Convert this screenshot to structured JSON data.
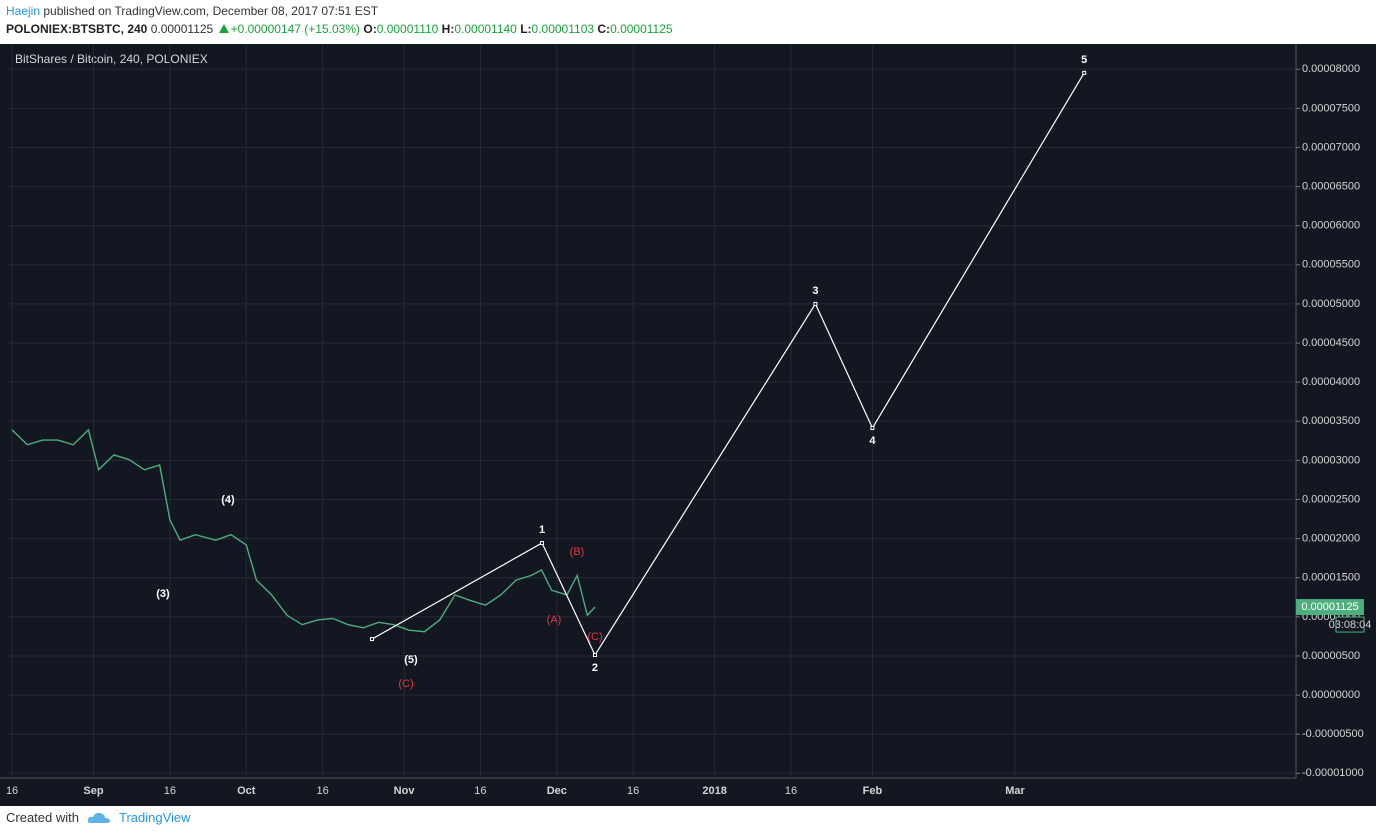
{
  "header": {
    "author": "Haejin",
    "published": "published on TradingView.com, December 08, 2017 07:51 EST",
    "symbol": "POLONIEX:BTSBTC, 240",
    "close": "0.00001125",
    "change": "+0.00000147 (+15.03%)",
    "o_label": "O:",
    "o": "0.00001110",
    "h_label": "H:",
    "h": "0.00001140",
    "l_label": "L:",
    "l": "0.00001103",
    "c_label": "C:",
    "c": "0.00001125"
  },
  "footer": {
    "created": "Created with",
    "brand": "TradingView"
  },
  "chart_data": {
    "type": "line",
    "title": "BitShares / Bitcoin, 240, POLONIEX",
    "countdown": "03:08:04",
    "xlim": [
      -0.8,
      252.2
    ],
    "ylim": [
      -1.06e-05,
      8.31e-05
    ],
    "grid": true,
    "xticks": [
      {
        "value": 0,
        "label": "16"
      },
      {
        "value": 16,
        "label": "Sep"
      },
      {
        "value": 31,
        "label": "16"
      },
      {
        "value": 46,
        "label": "Oct"
      },
      {
        "value": 61,
        "label": "16"
      },
      {
        "value": 77,
        "label": "Nov"
      },
      {
        "value": 92,
        "label": "16"
      },
      {
        "value": 107,
        "label": "Dec"
      },
      {
        "value": 122,
        "label": "16"
      },
      {
        "value": 138,
        "label": "2018"
      },
      {
        "value": 153,
        "label": "16"
      },
      {
        "value": 169,
        "label": "Feb"
      },
      {
        "value": 197,
        "label": "Mar"
      }
    ],
    "yticks": [
      {
        "value": 8e-05,
        "label": "0.00008000"
      },
      {
        "value": 7.5e-05,
        "label": "0.00007500"
      },
      {
        "value": 7e-05,
        "label": "0.00007000"
      },
      {
        "value": 6.5e-05,
        "label": "0.00006500"
      },
      {
        "value": 6e-05,
        "label": "0.00006000"
      },
      {
        "value": 5.5e-05,
        "label": "0.00005500"
      },
      {
        "value": 5e-05,
        "label": "0.00005000"
      },
      {
        "value": 4.5e-05,
        "label": "0.00004500"
      },
      {
        "value": 4e-05,
        "label": "0.00004000"
      },
      {
        "value": 3.5e-05,
        "label": "0.00003500"
      },
      {
        "value": 3e-05,
        "label": "0.00003000"
      },
      {
        "value": 2.5e-05,
        "label": "0.00002500"
      },
      {
        "value": 2e-05,
        "label": "0.00002000"
      },
      {
        "value": 1.5e-05,
        "label": "0.00001500"
      },
      {
        "value": 1e-05,
        "label": "0.00001000"
      },
      {
        "value": 5e-06,
        "label": "0.00000500"
      },
      {
        "value": 0,
        "label": "0.00000000"
      },
      {
        "value": -5e-06,
        "label": "-0.00000500"
      },
      {
        "value": -1e-05,
        "label": "-0.00001000"
      }
    ],
    "series": [
      {
        "color": "#4caf7d",
        "x": [
          0,
          3,
          6,
          9,
          12,
          15,
          17,
          20,
          23,
          26,
          29,
          31,
          33,
          36,
          40,
          43,
          46,
          48,
          51,
          54,
          57,
          60,
          63,
          66,
          69,
          72,
          75,
          78,
          81,
          84,
          87,
          90,
          93,
          96,
          99,
          102,
          104,
          106,
          109,
          111,
          113,
          114.5
        ],
        "values": [
          3.39e-05,
          3.2e-05,
          3.26e-05,
          3.26e-05,
          3.2e-05,
          3.39e-05,
          2.88e-05,
          3.07e-05,
          3.01e-05,
          2.88e-05,
          2.94e-05,
          2.24e-05,
          1.98e-05,
          2.05e-05,
          1.98e-05,
          2.05e-05,
          1.92e-05,
          1.47e-05,
          1.28e-05,
          1.02e-05,
          9e-06,
          9.6e-06,
          9.8e-06,
          9e-06,
          8.6e-06,
          9.3e-06,
          9e-06,
          8.3e-06,
          8.1e-06,
          9.6e-06,
          1.28e-05,
          1.21e-05,
          1.15e-05,
          1.28e-05,
          1.47e-05,
          1.53e-05,
          1.6e-05,
          1.34e-05,
          1.28e-05,
          1.53e-05,
          1.02e-05,
          1.125e-05
        ]
      },
      {
        "color": "#ffffff",
        "x": [
          70.7,
          104.1,
          114.5,
          157.8,
          169,
          210.6
        ],
        "values": [
          7.16e-06,
          1.944e-05,
          5.12e-06,
          5e-05,
          3.414e-05,
          7.954e-05
        ],
        "point_labels": [
          null,
          "1",
          "2",
          "3",
          "4",
          "5"
        ]
      }
    ],
    "annotations": [
      {
        "text": "(3)",
        "color": "#ffffff"
      },
      {
        "text": "(4)",
        "color": "#ffffff"
      },
      {
        "text": "(5)",
        "color": "#ffffff"
      },
      {
        "text": "(C)",
        "color": "#e0393e"
      },
      {
        "text": "(A)",
        "color": "#e0393e"
      },
      {
        "text": "(B)",
        "color": "#e0393e"
      },
      {
        "text": "(C)",
        "color": "#e0393e"
      }
    ]
  }
}
